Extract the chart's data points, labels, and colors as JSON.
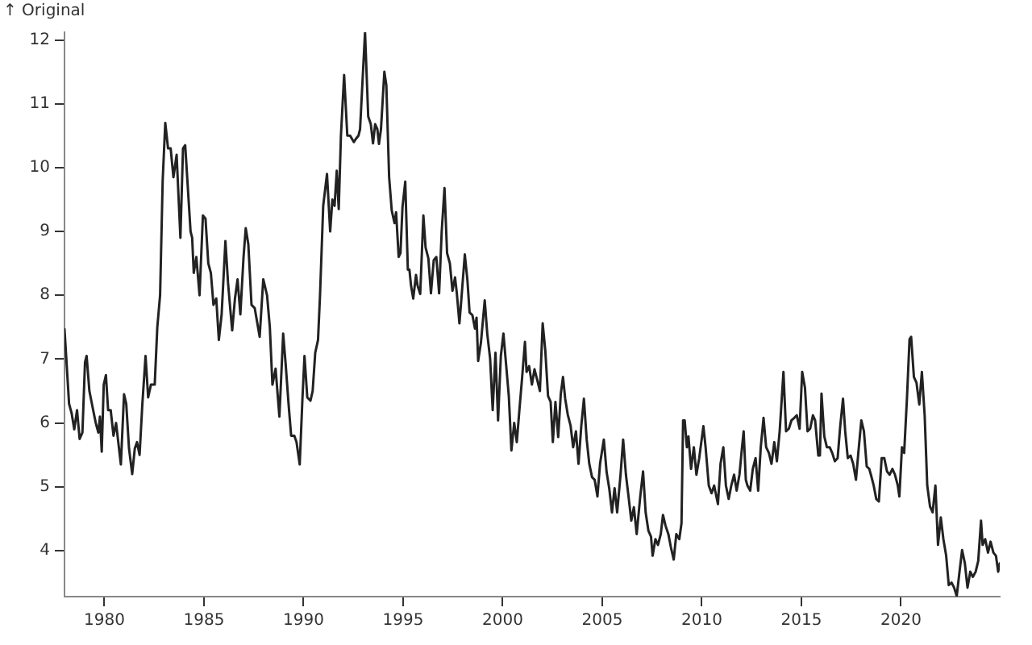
{
  "chart_data": {
    "type": "line",
    "ylabel": "↑ Original",
    "color": "#222222",
    "grid": false,
    "legend": false,
    "xlim": [
      1978.0,
      2024.96
    ],
    "xticks": [
      1980,
      1985,
      1990,
      1995,
      2000,
      2005,
      2010,
      2015,
      2020
    ],
    "ylim": [
      3.28,
      12.12
    ],
    "yticks": [
      4,
      5,
      6,
      7,
      8,
      9,
      10,
      11,
      12
    ],
    "x": [
      1978.0,
      1978.23,
      1978.36,
      1978.49,
      1978.63,
      1978.76,
      1978.9,
      1979.03,
      1979.11,
      1979.25,
      1979.44,
      1979.57,
      1979.7,
      1979.78,
      1979.87,
      1979.97,
      1980.08,
      1980.19,
      1980.32,
      1980.46,
      1980.59,
      1980.83,
      1980.99,
      1981.1,
      1981.24,
      1981.4,
      1981.53,
      1981.64,
      1981.77,
      1981.91,
      1982.07,
      1982.2,
      1982.34,
      1982.53,
      1982.66,
      1982.8,
      1982.93,
      1983.06,
      1983.2,
      1983.33,
      1983.47,
      1983.63,
      1983.82,
      1983.95,
      1984.06,
      1984.17,
      1984.33,
      1984.41,
      1984.49,
      1984.62,
      1984.78,
      1984.95,
      1985.08,
      1985.22,
      1985.35,
      1985.48,
      1985.62,
      1985.75,
      1985.89,
      1986.08,
      1986.21,
      1986.32,
      1986.42,
      1986.56,
      1986.69,
      1986.83,
      1986.99,
      1987.1,
      1987.23,
      1987.39,
      1987.55,
      1987.8,
      1987.98,
      1988.17,
      1988.31,
      1988.44,
      1988.6,
      1988.79,
      1988.98,
      1989.11,
      1989.25,
      1989.38,
      1989.54,
      1989.65,
      1989.81,
      1989.95,
      1990.05,
      1990.19,
      1990.35,
      1990.46,
      1990.59,
      1990.73,
      1990.83,
      1990.99,
      1991.18,
      1991.34,
      1991.45,
      1991.56,
      1991.67,
      1991.77,
      1991.88,
      1992.04,
      1992.2,
      1992.34,
      1992.53,
      1992.63,
      1992.76,
      1992.84,
      1993.09,
      1993.25,
      1993.38,
      1993.49,
      1993.6,
      1993.71,
      1993.79,
      1993.89,
      1994.06,
      1994.16,
      1994.3,
      1994.43,
      1994.57,
      1994.65,
      1994.78,
      1994.87,
      1994.97,
      1995.11,
      1995.24,
      1995.32,
      1995.4,
      1995.51,
      1995.65,
      1995.73,
      1995.86,
      1996.02,
      1996.13,
      1996.27,
      1996.4,
      1996.54,
      1996.67,
      1996.81,
      1996.94,
      1997.08,
      1997.21,
      1997.35,
      1997.48,
      1997.61,
      1997.7,
      1997.83,
      1997.96,
      1998.1,
      1998.23,
      1998.34,
      1998.48,
      1998.61,
      1998.69,
      1998.77,
      1998.91,
      1999.1,
      1999.23,
      1999.37,
      1999.5,
      1999.64,
      1999.77,
      1999.91,
      2000.04,
      2000.18,
      2000.31,
      2000.44,
      2000.58,
      2000.71,
      2000.84,
      2000.98,
      2001.12,
      2001.2,
      2001.33,
      2001.47,
      2001.6,
      2001.74,
      2001.87,
      2002.01,
      2002.14,
      2002.28,
      2002.41,
      2002.52,
      2002.65,
      2002.79,
      2002.92,
      2003.03,
      2003.14,
      2003.27,
      2003.41,
      2003.54,
      2003.68,
      2003.81,
      2003.95,
      2004.08,
      2004.22,
      2004.35,
      2004.49,
      2004.62,
      2004.76,
      2004.89,
      2005.08,
      2005.22,
      2005.35,
      2005.49,
      2005.62,
      2005.75,
      2005.92,
      2006.05,
      2006.19,
      2006.32,
      2006.46,
      2006.59,
      2006.73,
      2006.91,
      2007.05,
      2007.18,
      2007.32,
      2007.45,
      2007.53,
      2007.67,
      2007.8,
      2007.94,
      2008.05,
      2008.18,
      2008.32,
      2008.45,
      2008.59,
      2008.72,
      2008.87,
      2008.98,
      2009.06,
      2009.14,
      2009.25,
      2009.33,
      2009.46,
      2009.6,
      2009.73,
      2009.87,
      2010.08,
      2010.19,
      2010.35,
      2010.49,
      2010.62,
      2010.81,
      2010.94,
      2011.08,
      2011.21,
      2011.35,
      2011.48,
      2011.62,
      2011.75,
      2011.89,
      2012.02,
      2012.1,
      2012.21,
      2012.29,
      2012.43,
      2012.56,
      2012.7,
      2012.83,
      2012.96,
      2013.1,
      2013.23,
      2013.37,
      2013.5,
      2013.64,
      2013.77,
      2013.91,
      2014.1,
      2014.23,
      2014.37,
      2014.5,
      2014.64,
      2014.77,
      2014.91,
      2015.04,
      2015.18,
      2015.31,
      2015.44,
      2015.58,
      2015.69,
      2015.85,
      2015.93,
      2016.01,
      2016.15,
      2016.28,
      2016.42,
      2016.55,
      2016.68,
      2016.82,
      2016.95,
      2017.09,
      2017.2,
      2017.33,
      2017.47,
      2017.6,
      2017.74,
      2017.87,
      2018.01,
      2018.14,
      2018.28,
      2018.41,
      2018.49,
      2018.63,
      2018.76,
      2018.89,
      2019.03,
      2019.16,
      2019.3,
      2019.43,
      2019.57,
      2019.7,
      2019.84,
      2019.92,
      2020.05,
      2020.16,
      2020.3,
      2020.43,
      2020.51,
      2020.65,
      2020.78,
      2020.92,
      2021.05,
      2021.19,
      2021.32,
      2021.46,
      2021.59,
      2021.73,
      2021.86,
      2022.0,
      2022.13,
      2022.27,
      2022.4,
      2022.54,
      2022.67,
      2022.8,
      2022.94,
      2023.07,
      2023.21,
      2023.34,
      2023.48,
      2023.61,
      2023.75,
      2023.88,
      2024.02,
      2024.1,
      2024.23,
      2024.37,
      2024.5,
      2024.64,
      2024.77,
      2024.88,
      2024.96
    ],
    "values": [
      7.47,
      6.3,
      6.15,
      5.9,
      6.2,
      5.75,
      5.85,
      6.95,
      7.05,
      6.5,
      6.2,
      6.0,
      5.85,
      6.1,
      5.55,
      6.6,
      6.75,
      6.2,
      6.2,
      5.8,
      6.0,
      5.35,
      6.45,
      6.3,
      5.6,
      5.2,
      5.6,
      5.7,
      5.5,
      6.3,
      7.05,
      6.4,
      6.6,
      6.6,
      7.5,
      8.0,
      9.8,
      10.7,
      10.3,
      10.3,
      9.85,
      10.2,
      8.9,
      10.3,
      10.35,
      9.8,
      9.0,
      8.9,
      8.35,
      8.6,
      8.0,
      9.25,
      9.2,
      8.5,
      8.35,
      7.85,
      7.95,
      7.3,
      7.7,
      8.85,
      8.2,
      7.8,
      7.45,
      7.95,
      8.25,
      7.7,
      8.6,
      9.05,
      8.8,
      7.85,
      7.8,
      7.35,
      8.25,
      8.0,
      7.5,
      6.6,
      6.85,
      6.1,
      7.4,
      6.9,
      6.3,
      5.8,
      5.8,
      5.7,
      5.35,
      6.4,
      7.05,
      6.4,
      6.35,
      6.5,
      7.1,
      7.3,
      8.0,
      9.4,
      9.9,
      9.0,
      9.5,
      9.4,
      9.95,
      9.35,
      10.5,
      11.45,
      10.5,
      10.5,
      10.4,
      10.45,
      10.5,
      10.6,
      12.12,
      10.8,
      10.68,
      10.38,
      10.68,
      10.6,
      10.37,
      10.6,
      11.5,
      11.29,
      9.85,
      9.33,
      9.13,
      9.3,
      8.6,
      8.66,
      9.38,
      9.78,
      8.4,
      8.4,
      8.15,
      7.95,
      8.32,
      8.15,
      8.02,
      9.25,
      8.75,
      8.58,
      8.03,
      8.55,
      8.6,
      8.03,
      9.0,
      9.68,
      8.66,
      8.5,
      8.07,
      8.28,
      8.03,
      7.56,
      8.07,
      8.64,
      8.24,
      7.73,
      7.69,
      7.48,
      7.65,
      6.97,
      7.26,
      7.92,
      7.39,
      7.01,
      6.2,
      7.1,
      6.04,
      7.05,
      7.4,
      6.89,
      6.42,
      5.57,
      6.0,
      5.7,
      6.2,
      6.72,
      7.27,
      6.8,
      6.89,
      6.6,
      6.84,
      6.67,
      6.5,
      7.56,
      7.14,
      6.42,
      6.33,
      5.7,
      6.33,
      5.78,
      6.46,
      6.72,
      6.38,
      6.13,
      5.96,
      5.62,
      5.87,
      5.36,
      5.96,
      6.38,
      5.74,
      5.36,
      5.15,
      5.11,
      4.85,
      5.36,
      5.74,
      5.23,
      4.98,
      4.6,
      4.98,
      4.6,
      5.19,
      5.74,
      5.19,
      4.85,
      4.47,
      4.68,
      4.26,
      4.85,
      5.24,
      4.6,
      4.31,
      4.22,
      3.92,
      4.18,
      4.09,
      4.26,
      4.56,
      4.39,
      4.26,
      4.05,
      3.86,
      4.26,
      4.18,
      4.43,
      6.04,
      6.04,
      5.62,
      5.79,
      5.28,
      5.62,
      5.19,
      5.45,
      5.95,
      5.62,
      5.02,
      4.9,
      5.02,
      4.73,
      5.36,
      5.62,
      5.02,
      4.81,
      5.02,
      5.19,
      4.94,
      5.19,
      5.62,
      5.87,
      5.11,
      5.02,
      4.94,
      5.28,
      5.45,
      4.94,
      5.62,
      6.08,
      5.62,
      5.53,
      5.36,
      5.7,
      5.4,
      5.87,
      6.8,
      5.87,
      5.91,
      6.04,
      6.08,
      6.12,
      5.91,
      6.8,
      6.55,
      5.87,
      5.91,
      6.12,
      6.04,
      5.49,
      5.49,
      6.46,
      5.79,
      5.62,
      5.62,
      5.53,
      5.4,
      5.45,
      5.95,
      6.38,
      5.87,
      5.45,
      5.49,
      5.36,
      5.11,
      5.57,
      6.04,
      5.87,
      5.32,
      5.28,
      5.19,
      5.02,
      4.81,
      4.77,
      5.45,
      5.45,
      5.24,
      5.19,
      5.28,
      5.19,
      5.02,
      4.85,
      5.62,
      5.53,
      6.38,
      7.31,
      7.35,
      6.72,
      6.63,
      6.29,
      6.8,
      6.12,
      5.02,
      4.69,
      4.6,
      5.02,
      4.09,
      4.52,
      4.18,
      3.92,
      3.46,
      3.5,
      3.42,
      3.29,
      3.67,
      4.01,
      3.8,
      3.42,
      3.67,
      3.59,
      3.67,
      3.84,
      4.47,
      4.09,
      4.18,
      3.97,
      4.14,
      3.97,
      3.92,
      3.67,
      3.8
    ]
  }
}
